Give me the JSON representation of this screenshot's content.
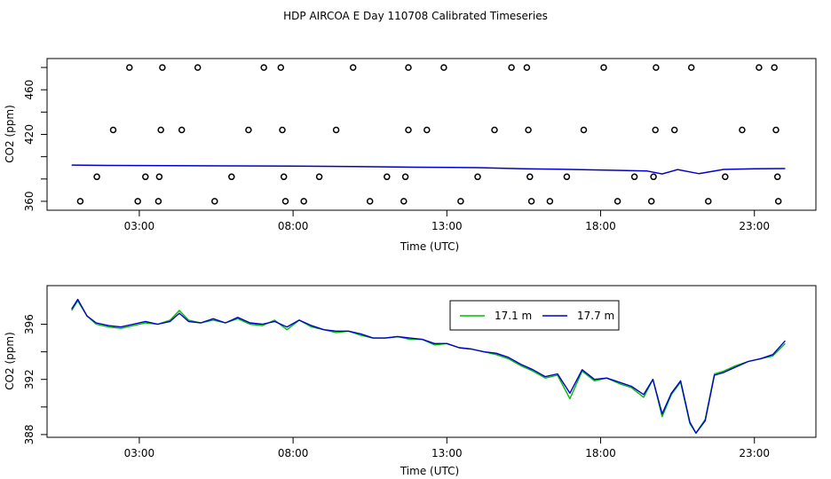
{
  "title": "HDP AIRCOA E  Day 110708  Calibrated Timeseries",
  "colors": {
    "series_green": "#00bb00",
    "series_blue": "#0000cc",
    "markers": "#000000",
    "axes": "#000000"
  },
  "chart_data": [
    {
      "type": "scatter",
      "xlabel": "Time (UTC)",
      "ylabel": "CO2 (ppm)",
      "xlim": [
        0,
        25
      ],
      "ylim": [
        352,
        488
      ],
      "x_ticks": [
        3,
        8,
        13,
        18,
        23
      ],
      "x_tick_labels": [
        "03:00",
        "08:00",
        "13:00",
        "18:00",
        "23:00"
      ],
      "y_ticks": [
        360,
        380,
        400,
        420,
        440,
        460,
        480
      ],
      "y_tick_labels": [
        "360",
        "",
        "",
        "420",
        "",
        "460",
        ""
      ],
      "markers": [
        {
          "x": 1.08,
          "y": 360
        },
        {
          "x": 1.62,
          "y": 382
        },
        {
          "x": 2.15,
          "y": 424
        },
        {
          "x": 2.68,
          "y": 480
        },
        {
          "x": 3.2,
          "y": 382
        },
        {
          "x": 2.95,
          "y": 360
        },
        {
          "x": 3.7,
          "y": 424
        },
        {
          "x": 3.75,
          "y": 480
        },
        {
          "x": 3.65,
          "y": 382
        },
        {
          "x": 3.62,
          "y": 360
        },
        {
          "x": 4.38,
          "y": 424
        },
        {
          "x": 4.9,
          "y": 480
        },
        {
          "x": 5.45,
          "y": 360
        },
        {
          "x": 6.0,
          "y": 382
        },
        {
          "x": 6.55,
          "y": 424
        },
        {
          "x": 7.05,
          "y": 480
        },
        {
          "x": 7.6,
          "y": 480
        },
        {
          "x": 7.65,
          "y": 424
        },
        {
          "x": 7.7,
          "y": 382
        },
        {
          "x": 7.75,
          "y": 360
        },
        {
          "x": 8.35,
          "y": 360
        },
        {
          "x": 8.85,
          "y": 382
        },
        {
          "x": 9.4,
          "y": 424
        },
        {
          "x": 9.95,
          "y": 480
        },
        {
          "x": 10.5,
          "y": 360
        },
        {
          "x": 11.05,
          "y": 382
        },
        {
          "x": 11.6,
          "y": 360
        },
        {
          "x": 11.65,
          "y": 382
        },
        {
          "x": 11.75,
          "y": 424
        },
        {
          "x": 11.75,
          "y": 480
        },
        {
          "x": 12.35,
          "y": 424
        },
        {
          "x": 12.9,
          "y": 480
        },
        {
          "x": 13.45,
          "y": 360
        },
        {
          "x": 14.0,
          "y": 382
        },
        {
          "x": 14.55,
          "y": 424
        },
        {
          "x": 15.1,
          "y": 480
        },
        {
          "x": 15.6,
          "y": 480
        },
        {
          "x": 15.65,
          "y": 424
        },
        {
          "x": 15.7,
          "y": 382
        },
        {
          "x": 15.75,
          "y": 360
        },
        {
          "x": 16.35,
          "y": 360
        },
        {
          "x": 16.9,
          "y": 382
        },
        {
          "x": 17.45,
          "y": 424
        },
        {
          "x": 18.1,
          "y": 480
        },
        {
          "x": 18.55,
          "y": 360
        },
        {
          "x": 19.1,
          "y": 382
        },
        {
          "x": 19.65,
          "y": 360
        },
        {
          "x": 19.72,
          "y": 382
        },
        {
          "x": 19.78,
          "y": 424
        },
        {
          "x": 19.8,
          "y": 480
        },
        {
          "x": 20.4,
          "y": 424
        },
        {
          "x": 20.95,
          "y": 480
        },
        {
          "x": 21.5,
          "y": 360
        },
        {
          "x": 22.05,
          "y": 382
        },
        {
          "x": 22.6,
          "y": 424
        },
        {
          "x": 23.15,
          "y": 480
        },
        {
          "x": 23.65,
          "y": 480
        },
        {
          "x": 23.7,
          "y": 424
        },
        {
          "x": 23.75,
          "y": 382
        },
        {
          "x": 23.78,
          "y": 360
        }
      ],
      "series": [
        {
          "x": [
            0.8,
            2.0,
            4.0,
            6.0,
            8.0,
            10.0,
            12.0,
            14.0,
            15.5,
            17.0,
            18.5,
            19.5,
            20.0,
            20.5,
            21.2,
            22.0,
            23.0,
            24.0
          ],
          "values": [
            392.5,
            392.2,
            392.0,
            391.8,
            391.6,
            391.2,
            390.6,
            390.2,
            389.2,
            388.6,
            387.8,
            387.2,
            384.5,
            388.4,
            384.8,
            388.6,
            389.2,
            389.4
          ]
        }
      ]
    },
    {
      "type": "line",
      "xlabel": "Time (UTC)",
      "ylabel": "CO2 (ppm)",
      "xlim": [
        0,
        25
      ],
      "ylim": [
        387.8,
        398.8
      ],
      "x_ticks": [
        3,
        8,
        13,
        18,
        23
      ],
      "x_tick_labels": [
        "03:00",
        "08:00",
        "13:00",
        "18:00",
        "23:00"
      ],
      "y_ticks": [
        388,
        390,
        392,
        394,
        396
      ],
      "y_tick_labels": [
        "388",
        "",
        "392",
        "",
        "396"
      ],
      "legend": {
        "placement": "top-center"
      },
      "categories": [
        0.8,
        1.0,
        1.3,
        1.6,
        2.0,
        2.4,
        2.8,
        3.2,
        3.6,
        4.0,
        4.3,
        4.6,
        5.0,
        5.4,
        5.8,
        6.2,
        6.6,
        7.0,
        7.4,
        7.8,
        8.2,
        8.6,
        9.0,
        9.4,
        9.8,
        10.2,
        10.6,
        11.0,
        11.4,
        11.8,
        12.2,
        12.6,
        13.0,
        13.4,
        13.8,
        14.2,
        14.6,
        15.0,
        15.4,
        15.8,
        16.2,
        16.6,
        17.0,
        17.4,
        17.8,
        18.2,
        18.6,
        19.0,
        19.4,
        19.7,
        20.0,
        20.3,
        20.6,
        20.9,
        21.1,
        21.4,
        21.7,
        22.0,
        22.4,
        22.8,
        23.2,
        23.6,
        24.0
      ],
      "series": [
        {
          "name": "17.1 m",
          "values": [
            397.0,
            397.7,
            396.6,
            396.0,
            395.8,
            395.7,
            395.9,
            396.1,
            396.0,
            396.3,
            397.0,
            396.3,
            396.1,
            396.3,
            396.1,
            396.4,
            396.0,
            395.9,
            396.3,
            395.6,
            396.3,
            395.8,
            395.6,
            395.4,
            395.5,
            395.2,
            395.0,
            395.0,
            395.1,
            394.9,
            394.9,
            394.5,
            394.6,
            394.3,
            394.2,
            394.0,
            393.8,
            393.5,
            393.0,
            392.6,
            392.1,
            392.3,
            390.6,
            392.6,
            391.9,
            392.1,
            391.7,
            391.4,
            390.7,
            392.0,
            389.3,
            390.9,
            391.8,
            388.8,
            388.1,
            389.1,
            392.4,
            392.6,
            393.0,
            393.3,
            393.5,
            393.7,
            394.6
          ]
        },
        {
          "name": "17.7 m",
          "values": [
            397.1,
            397.8,
            396.6,
            396.1,
            395.9,
            395.8,
            396.0,
            396.2,
            396.0,
            396.2,
            396.8,
            396.2,
            396.1,
            396.4,
            396.1,
            396.5,
            396.1,
            396.0,
            396.2,
            395.8,
            396.3,
            395.9,
            395.6,
            395.5,
            395.5,
            395.3,
            395.0,
            395.0,
            395.1,
            395.0,
            394.9,
            394.6,
            394.6,
            394.3,
            394.2,
            394.0,
            393.9,
            393.6,
            393.1,
            392.7,
            392.2,
            392.4,
            391.0,
            392.7,
            392.0,
            392.1,
            391.8,
            391.5,
            390.9,
            392.0,
            389.5,
            391.0,
            391.9,
            388.9,
            388.1,
            389.0,
            392.3,
            392.5,
            392.9,
            393.3,
            393.5,
            393.8,
            394.8
          ]
        }
      ]
    }
  ]
}
